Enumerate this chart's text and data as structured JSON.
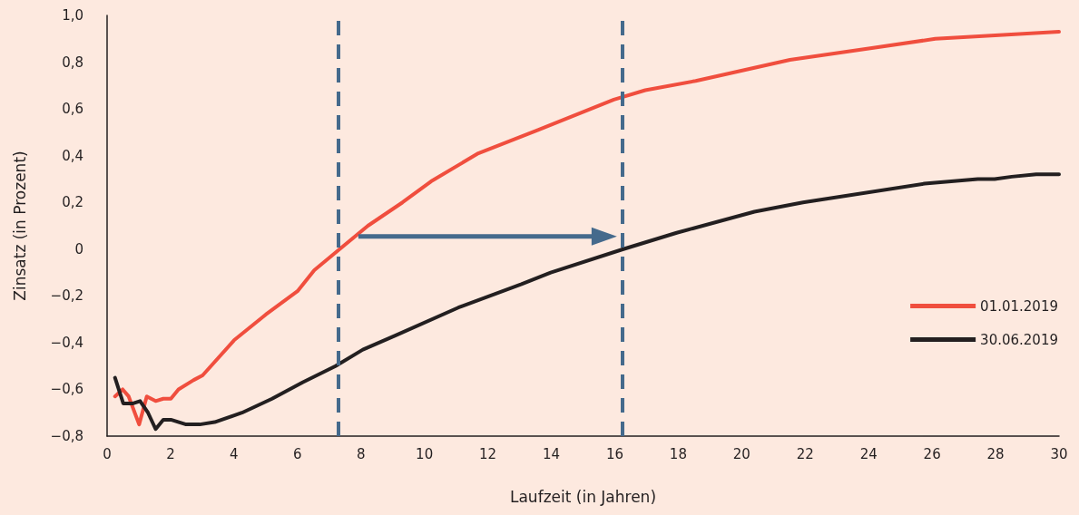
{
  "chart_data": {
    "type": "line",
    "xlabel": "Laufzeit (in Jahren)",
    "ylabel": "Zinsatz (in Prozent)",
    "series": [
      {
        "name": "01.01.2019",
        "color": "#f04e3e",
        "x": [
          0.25,
          0.49,
          0.68,
          1.01,
          1.25,
          1.53,
          1.77,
          2.01,
          2.25,
          2.73,
          3.01,
          4,
          5,
          6,
          6.53,
          7.33,
          8.22,
          9.31,
          10.21,
          11.7,
          13.58,
          15.97,
          16.96,
          18.55,
          21.52,
          24.1,
          26.1,
          30
        ],
        "values": [
          -0.63,
          -0.6,
          -0.63,
          -0.75,
          -0.63,
          -0.65,
          -0.64,
          -0.64,
          -0.6,
          -0.56,
          -0.54,
          -0.39,
          -0.28,
          -0.18,
          -0.09,
          0,
          0.1,
          0.2,
          0.29,
          0.41,
          0.51,
          0.64,
          0.68,
          0.72,
          0.81,
          0.86,
          0.9,
          0.93
        ]
      },
      {
        "name": "30.06.2019",
        "color": "#231f20",
        "x": [
          0.25,
          0.51,
          0.82,
          1.04,
          1.29,
          1.53,
          1.77,
          2.01,
          2.49,
          2.92,
          3.39,
          4.25,
          5.2,
          6.16,
          7.2,
          8.06,
          9.08,
          11.07,
          13.06,
          13.98,
          16.27,
          17.95,
          20.4,
          21.93,
          25.76,
          27.44,
          27.97,
          28.51,
          29.28,
          30
        ],
        "values": [
          -0.55,
          -0.66,
          -0.66,
          -0.65,
          -0.7,
          -0.77,
          -0.73,
          -0.73,
          -0.75,
          -0.75,
          -0.74,
          -0.7,
          -0.64,
          -0.57,
          -0.5,
          -0.43,
          -0.37,
          -0.25,
          -0.15,
          -0.1,
          0,
          0.07,
          0.16,
          0.2,
          0.28,
          0.3,
          0.3,
          0.31,
          0.32,
          0.32
        ]
      }
    ],
    "xlim": [
      0,
      30
    ],
    "xticks": [
      0,
      2,
      4,
      6,
      8,
      10,
      12,
      14,
      16,
      18,
      20,
      22,
      24,
      26,
      28,
      30
    ],
    "ylim": [
      -0.8,
      1.0
    ],
    "yticks": [
      {
        "value": -0.8,
        "label": "−0,8"
      },
      {
        "value": -0.6,
        "label": "−0,6"
      },
      {
        "value": -0.4,
        "label": "−0,4"
      },
      {
        "value": -0.2,
        "label": "−0,2"
      },
      0,
      {
        "value": 0.2,
        "label": "0,2"
      },
      {
        "value": 0.4,
        "label": "0,4"
      },
      {
        "value": 0.6,
        "label": "0,6"
      },
      {
        "value": 0.8,
        "label": "0,8"
      },
      {
        "value": 1.0,
        "label": "1,0"
      }
    ],
    "ref_lines": [
      {
        "axis": "x",
        "value": 7.29,
        "color": "#456a8c",
        "line_style": "dashed"
      },
      {
        "axis": "x",
        "value": 16.24,
        "color": "#456a8c",
        "line_style": "dashed"
      }
    ],
    "grid": false,
    "legend": "right",
    "marker": "none",
    "line_style": "solid"
  }
}
